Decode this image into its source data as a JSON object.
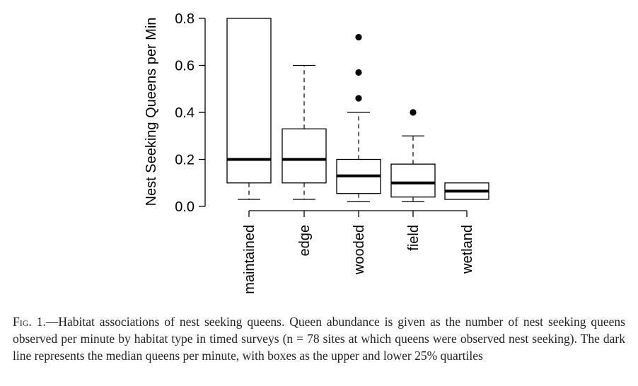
{
  "chart_data": {
    "type": "boxplot",
    "ylabel": "Nest Seeking Queens per Min",
    "xlabel": "",
    "ylim": [
      0,
      0.8
    ],
    "yticks": [
      "0.0",
      "0.2",
      "0.4",
      "0.6",
      "0.8"
    ],
    "categories": [
      "maintained",
      "edge",
      "wooded",
      "field",
      "wetland"
    ],
    "boxes": [
      {
        "category": "maintained",
        "whisker_low": 0.03,
        "q1": 0.1,
        "median": 0.2,
        "q3": 0.8,
        "whisker_high": 0.8,
        "outliers": []
      },
      {
        "category": "edge",
        "whisker_low": 0.03,
        "q1": 0.1,
        "median": 0.2,
        "q3": 0.33,
        "whisker_high": 0.6,
        "outliers": []
      },
      {
        "category": "wooded",
        "whisker_low": 0.02,
        "q1": 0.055,
        "median": 0.13,
        "q3": 0.2,
        "whisker_high": 0.4,
        "outliers": [
          0.46,
          0.57,
          0.72
        ]
      },
      {
        "category": "field",
        "whisker_low": 0.02,
        "q1": 0.04,
        "median": 0.1,
        "q3": 0.18,
        "whisker_high": 0.3,
        "outliers": [
          0.4
        ]
      },
      {
        "category": "wetland",
        "whisker_low": 0.03,
        "q1": 0.03,
        "median": 0.065,
        "q3": 0.1,
        "whisker_high": 0.1,
        "outliers": []
      }
    ],
    "grid": false,
    "legend": "none"
  },
  "caption": {
    "label": "Fig. 1.",
    "text": "—Habitat associations of nest seeking queens. Queen abundance is given as the number of nest seeking queens observed per minute by habitat type in timed surveys (n = 78 sites at which queens were observed nest seeking). The dark line represents the median queens per minute, with boxes as the upper and lower 25% quartiles"
  }
}
